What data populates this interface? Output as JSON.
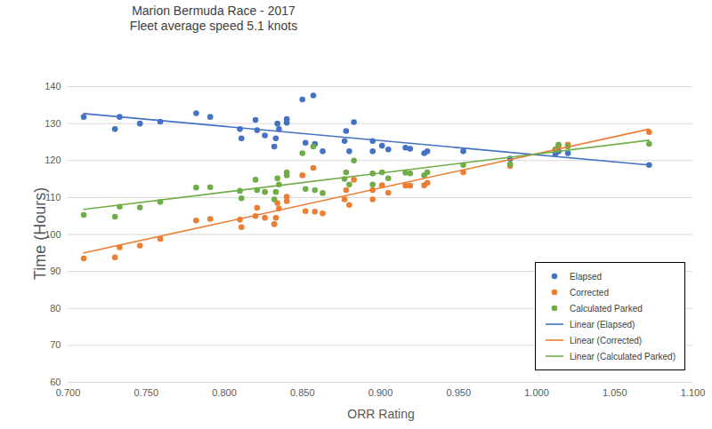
{
  "chart_data": {
    "type": "scatter",
    "title": "Marion Bermuda Race - 2017",
    "subtitle": "Fleet average speed 5.1 knots",
    "x_label": "ORR Rating",
    "y_label": "Time (Hours)",
    "x": [
      0.71,
      0.73,
      0.733,
      0.746,
      0.759,
      0.782,
      0.791,
      0.81,
      0.811,
      0.82,
      0.821,
      0.826,
      0.832,
      0.833,
      0.834,
      0.835,
      0.84,
      0.84,
      0.85,
      0.852,
      0.857,
      0.858,
      0.863,
      0.877,
      0.878,
      0.88,
      0.883,
      0.895,
      0.895,
      0.901,
      0.905,
      0.916,
      0.919,
      0.928,
      0.93,
      0.953,
      0.983,
      1.012,
      1.014,
      1.02,
      1.072
    ],
    "series": [
      {
        "name": "Elapsed",
        "color": "#4472c4",
        "type": "scatter",
        "values": [
          131.8,
          128.5,
          131.8,
          130.0,
          130.5,
          132.8,
          131.8,
          128.5,
          126.0,
          131.0,
          128.2,
          126.8,
          123.8,
          126.0,
          130.0,
          128.5,
          130.2,
          131.2,
          136.5,
          124.8,
          137.6,
          124.5,
          122.5,
          125.3,
          128.0,
          122.5,
          130.4,
          125.3,
          122.5,
          124.0,
          123.0,
          123.5,
          123.2,
          122.0,
          122.5,
          122.5,
          120.5,
          121.8,
          122.5,
          122.0,
          118.8
        ]
      },
      {
        "name": "Corrected",
        "color": "#ed7d31",
        "type": "scatter",
        "values": [
          93.5,
          93.8,
          96.5,
          97.0,
          98.8,
          103.8,
          104.2,
          104.0,
          102.0,
          105.0,
          107.2,
          104.5,
          102.8,
          104.5,
          108.5,
          107.0,
          109.0,
          110.2,
          116.0,
          106.3,
          118.0,
          106.2,
          105.7,
          109.5,
          112.0,
          108.0,
          114.8,
          109.5,
          112.0,
          113.3,
          111.3,
          113.2,
          113.2,
          113.3,
          114.0,
          116.8,
          118.5,
          123.0,
          124.0,
          124.3,
          127.7
        ]
      },
      {
        "name": "Calculated Parked",
        "color": "#70ad47",
        "type": "scatter",
        "values": [
          105.3,
          104.8,
          107.5,
          107.3,
          108.8,
          112.7,
          112.8,
          111.8,
          109.8,
          114.8,
          112.0,
          111.5,
          109.5,
          111.5,
          115.2,
          113.5,
          116.0,
          116.8,
          122.0,
          112.3,
          123.8,
          112.0,
          111.2,
          115.0,
          116.8,
          113.5,
          120.0,
          113.5,
          116.5,
          116.8,
          115.2,
          116.7,
          116.5,
          116.0,
          116.8,
          118.8,
          119.0,
          123.0,
          124.3,
          123.8,
          124.5
        ]
      },
      {
        "name": "Linear (Elapsed)",
        "color": "#4472c4",
        "type": "line",
        "x": [
          0.71,
          1.072
        ],
        "values": [
          132.7,
          118.8
        ]
      },
      {
        "name": "Linear (Corrected)",
        "color": "#ed7d31",
        "type": "line",
        "x": [
          0.71,
          1.072
        ],
        "values": [
          95.0,
          128.5
        ]
      },
      {
        "name": "Linear (Calculated Parked)",
        "color": "#70ad47",
        "type": "line",
        "x": [
          0.71,
          1.072
        ],
        "values": [
          106.8,
          125.5
        ]
      }
    ],
    "xlim": [
      0.7,
      1.1
    ],
    "xticks": [
      {
        "value": 0.7,
        "label": "0.700"
      },
      {
        "value": 0.75,
        "label": "0.750"
      },
      {
        "value": 0.8,
        "label": "0.800"
      },
      {
        "value": 0.85,
        "label": "0.850"
      },
      {
        "value": 0.9,
        "label": "0.900"
      },
      {
        "value": 0.95,
        "label": "0.950"
      },
      {
        "value": 1.0,
        "label": "1.000"
      },
      {
        "value": 1.05,
        "label": "1.050"
      },
      {
        "value": 1.1,
        "label": "1.100"
      }
    ],
    "ylim": [
      60,
      140
    ],
    "yticks": [
      60,
      70,
      80,
      90,
      100,
      110,
      120,
      130,
      140
    ],
    "grid": true,
    "legend": "bottom-right"
  }
}
